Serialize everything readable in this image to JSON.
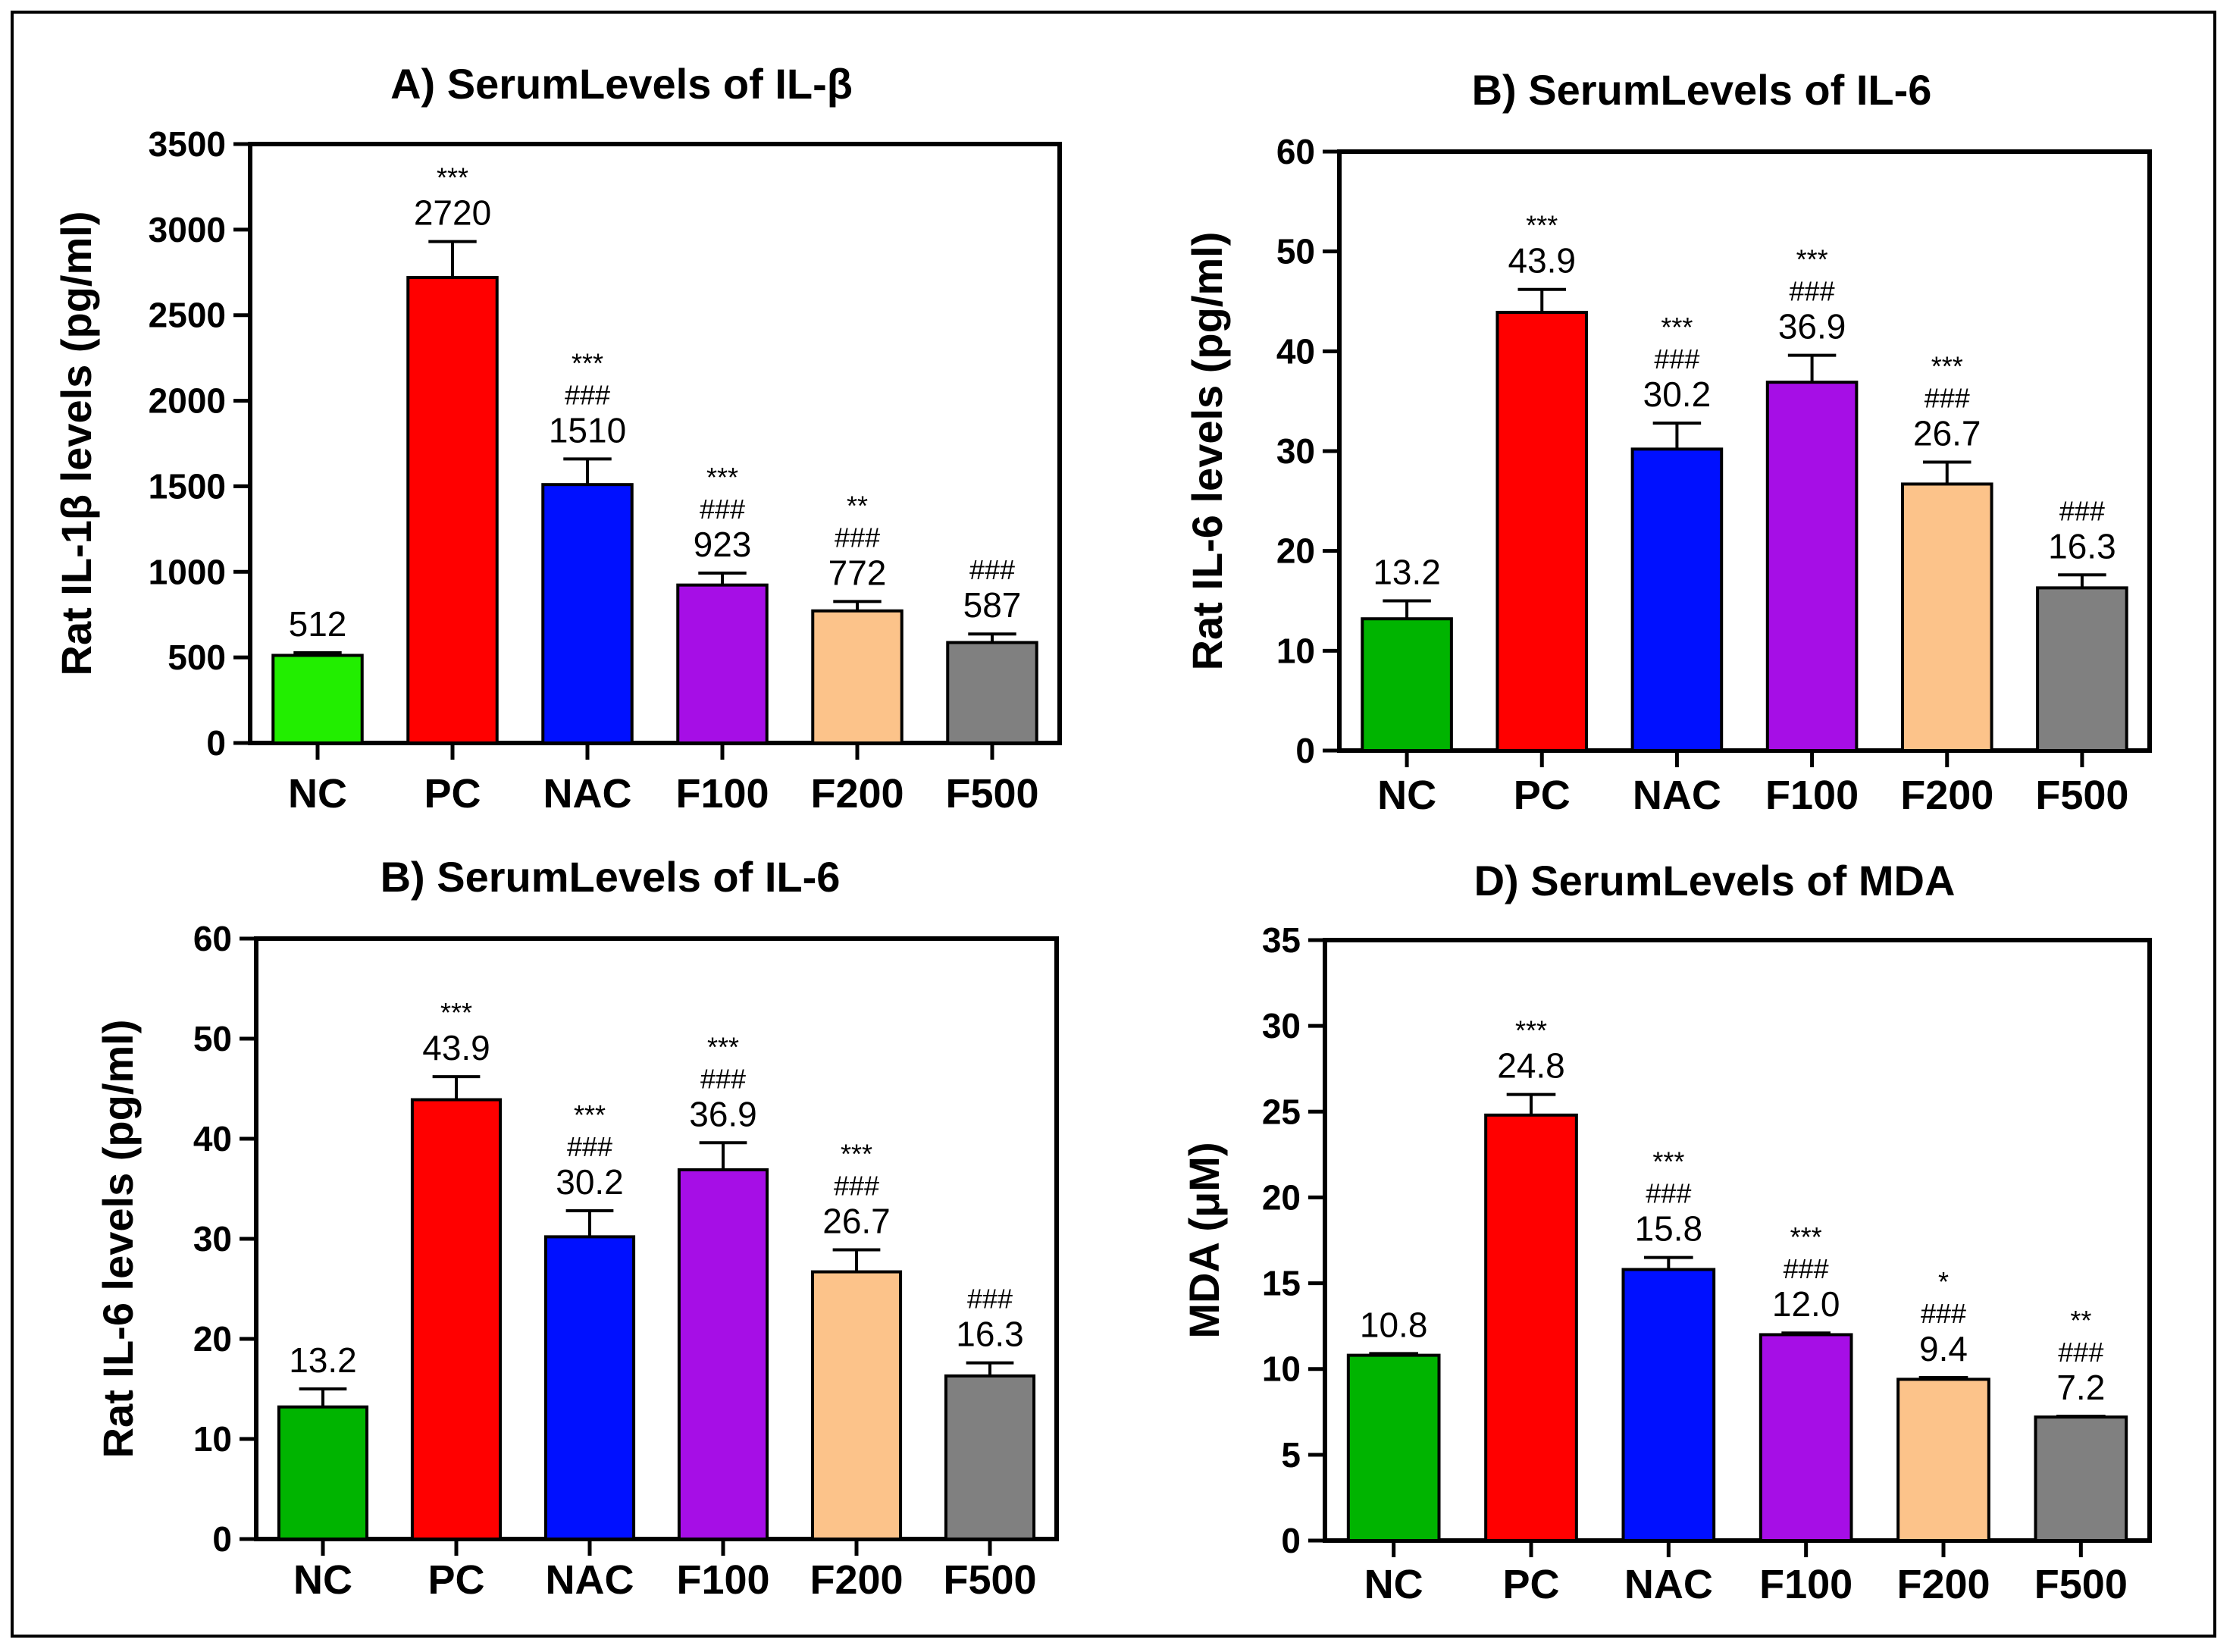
{
  "chart_data": [
    {
      "type": "bar",
      "title": "A) SerumLevels of IL-β",
      "xlabel": "",
      "ylabel": "Rat IL-1β levels (pg/ml)",
      "ylim": [
        0,
        3500
      ],
      "yticks": [
        0,
        500,
        1000,
        1500,
        2000,
        2500,
        3000,
        3500
      ],
      "categories": [
        "NC",
        "PC",
        "NAC",
        "F100",
        "F200",
        "F500"
      ],
      "values": [
        512,
        2720,
        1510,
        923,
        772,
        587
      ],
      "errors": [
        15,
        210,
        150,
        70,
        55,
        50
      ],
      "value_labels": [
        "512",
        "2720",
        "1510",
        "923",
        "772",
        "587"
      ],
      "significance": [
        [],
        [
          "***"
        ],
        [
          "***",
          "###"
        ],
        [
          "***",
          "###"
        ],
        [
          "**",
          "###"
        ],
        [
          "###"
        ]
      ],
      "colors": [
        "#22ee00",
        "#ff0000",
        "#0010ff",
        "#a60ee6",
        "#fcc38a",
        "#808080"
      ]
    },
    {
      "type": "bar",
      "title": "B) SerumLevels of IL-6",
      "xlabel": "",
      "ylabel": "Rat IL-6 levels (pg/ml)",
      "ylim": [
        0,
        60
      ],
      "yticks": [
        0,
        10,
        20,
        30,
        40,
        50,
        60
      ],
      "categories": [
        "NC",
        "PC",
        "NAC",
        "F100",
        "F200",
        "F500"
      ],
      "values": [
        13.2,
        43.9,
        30.2,
        36.9,
        26.7,
        16.3
      ],
      "errors": [
        1.8,
        2.3,
        2.6,
        2.7,
        2.2,
        1.3
      ],
      "value_labels": [
        "13.2",
        "43.9",
        "30.2",
        "36.9",
        "26.7",
        "16.3"
      ],
      "significance": [
        [],
        [
          "***"
        ],
        [
          "***",
          "###"
        ],
        [
          "***",
          "###"
        ],
        [
          "***",
          "###"
        ],
        [
          "###"
        ]
      ],
      "colors": [
        "#00b400",
        "#ff0000",
        "#0010ff",
        "#a60ee6",
        "#fcc38a",
        "#808080"
      ]
    },
    {
      "type": "bar",
      "title": "B) SerumLevels of IL-6",
      "xlabel": "",
      "ylabel": "Rat IL-6 levels (pg/ml)",
      "ylim": [
        0,
        60
      ],
      "yticks": [
        0,
        10,
        20,
        30,
        40,
        50,
        60
      ],
      "categories": [
        "NC",
        "PC",
        "NAC",
        "F100",
        "F200",
        "F500"
      ],
      "values": [
        13.2,
        43.9,
        30.2,
        36.9,
        26.7,
        16.3
      ],
      "errors": [
        1.8,
        2.3,
        2.6,
        2.7,
        2.2,
        1.3
      ],
      "value_labels": [
        "13.2",
        "43.9",
        "30.2",
        "36.9",
        "26.7",
        "16.3"
      ],
      "significance": [
        [],
        [
          "***"
        ],
        [
          "***",
          "###"
        ],
        [
          "***",
          "###"
        ],
        [
          "***",
          "###"
        ],
        [
          "###"
        ]
      ],
      "colors": [
        "#00b400",
        "#ff0000",
        "#0010ff",
        "#a60ee6",
        "#fcc38a",
        "#808080"
      ]
    },
    {
      "type": "bar",
      "title": "D) SerumLevels of MDA",
      "xlabel": "",
      "ylabel": "MDA (μM)",
      "ylim": [
        0,
        35
      ],
      "yticks": [
        0,
        5,
        10,
        15,
        20,
        25,
        30,
        35
      ],
      "categories": [
        "NC",
        "PC",
        "NAC",
        "F100",
        "F200",
        "F500"
      ],
      "values": [
        10.8,
        24.8,
        15.8,
        12.0,
        9.4,
        7.2
      ],
      "errors": [
        0.1,
        1.2,
        0.7,
        0.1,
        0.1,
        0.05
      ],
      "value_labels": [
        "10.8",
        "24.8",
        "15.8",
        "12.0",
        "9.4",
        "7.2"
      ],
      "significance": [
        [],
        [
          "***"
        ],
        [
          "***",
          "###"
        ],
        [
          "***",
          "###"
        ],
        [
          "*",
          "###"
        ],
        [
          "**",
          "###"
        ]
      ],
      "colors": [
        "#00b400",
        "#ff0000",
        "#0010ff",
        "#a60ee6",
        "#fcc38a",
        "#808080"
      ]
    }
  ]
}
